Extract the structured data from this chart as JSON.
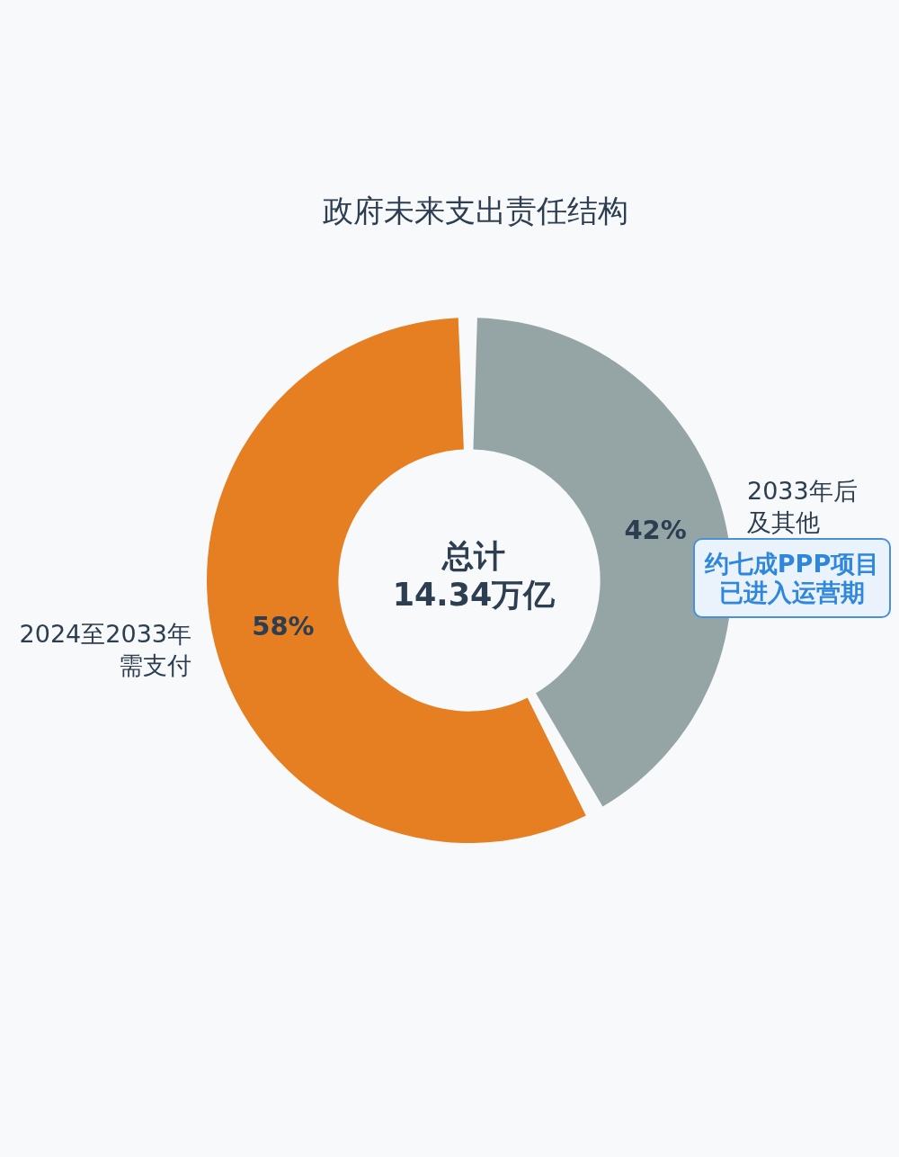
{
  "chart_data": {
    "type": "donut",
    "title": "政府未来支出责任结构",
    "categories": [
      "2033年后及其他",
      "2024至2033年需支付"
    ],
    "values": [
      42,
      58
    ],
    "colors": [
      "#95a5a6",
      "#e67e22"
    ],
    "value_labels": [
      "42%",
      "58%"
    ],
    "annotations": [
      "总计",
      "14.34万亿",
      "约七成PPP项目已进入运营期"
    ]
  }
}
